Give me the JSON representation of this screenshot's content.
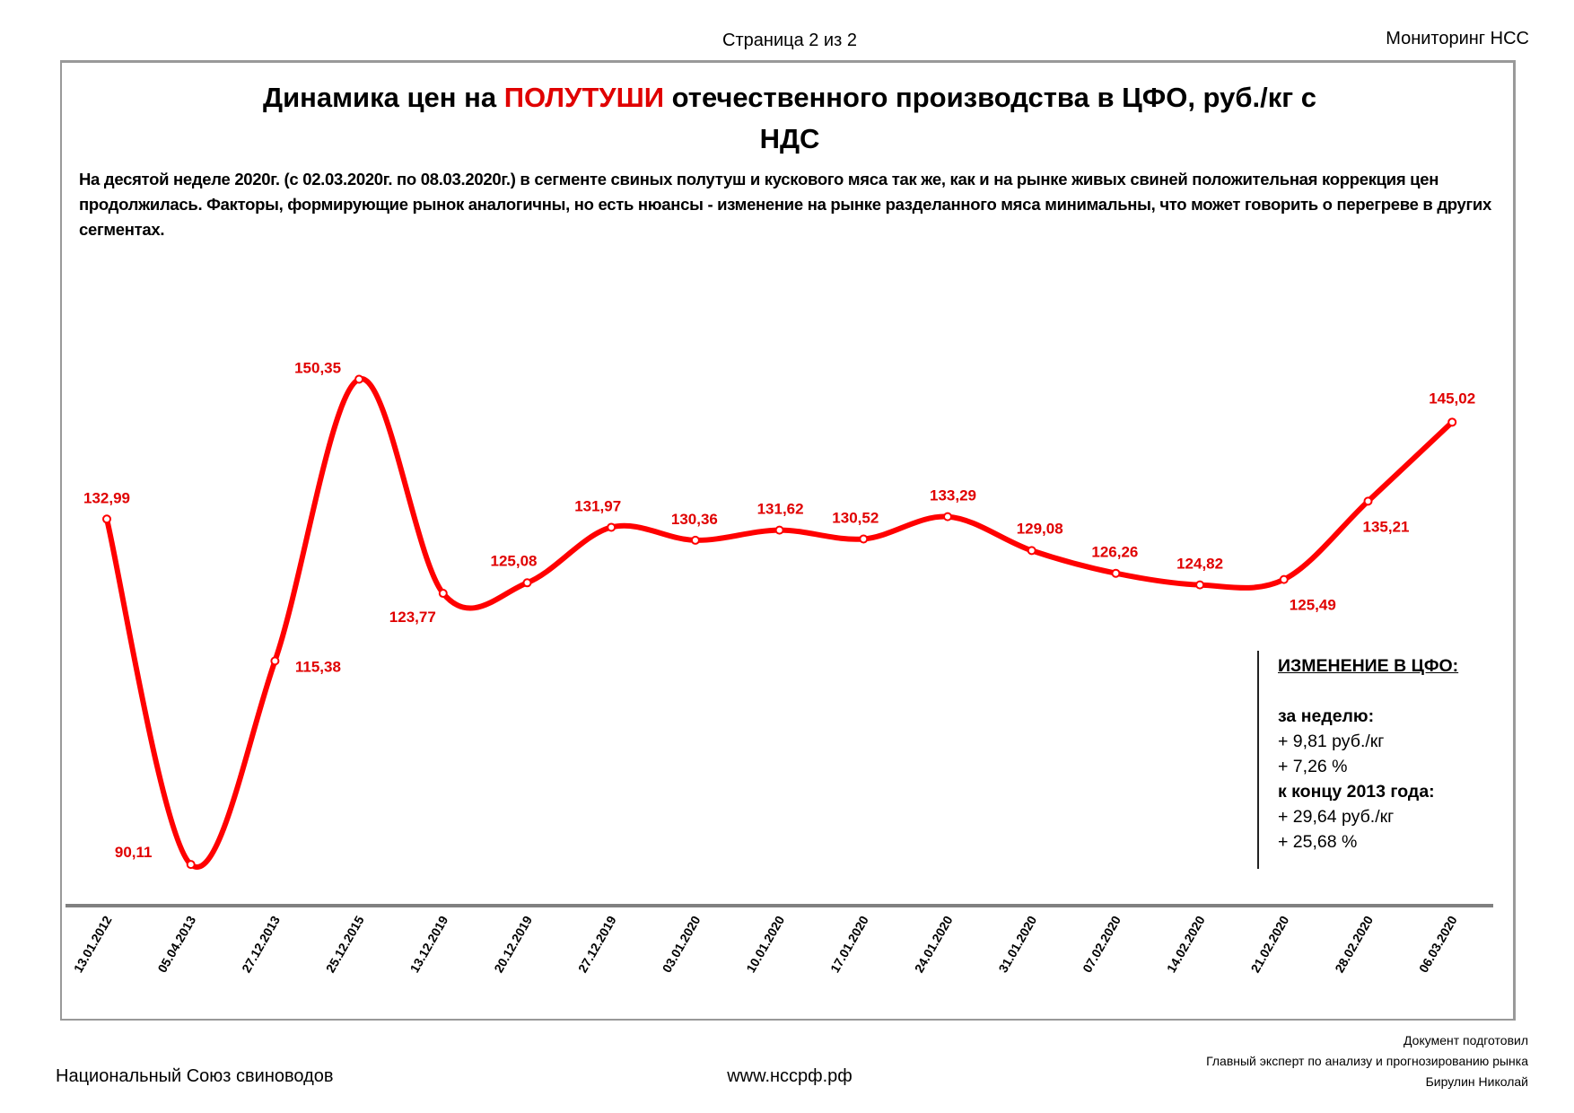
{
  "header": {
    "page": "Страница 2 из 2",
    "right": "Мониторинг НСС"
  },
  "title": {
    "part1": "Динамика цен на ",
    "highlight": "ПОЛУТУШИ",
    "part2": " отечественного производства в ЦФО, руб./кг с",
    "line2": "НДС"
  },
  "description": "На десятой неделе 2020г. (с 02.03.2020г. по 08.03.2020г.) в сегменте свиных полутуш и кускового мяса так же, как и на рынке живых свиней положительная коррекция цен продолжилась.  Факторы, формирующие рынок аналогичны, но есть нюансы - изменение на рынке разделанного мяса минимальны, что может говорить о перегреве в других сегментах.",
  "change_box": {
    "heading": "ИЗМЕНЕНИЕ В ЦФО:",
    "week_label": "за неделю:",
    "week_rub": "+ 9,81 руб./кг",
    "week_pct": "+ 7,26 %",
    "since_label": "к концу 2013 года:",
    "since_rub": "+ 29,64 руб./кг",
    "since_pct": "+ 25,68 %"
  },
  "footer": {
    "left": "Национальный Союз свиноводов",
    "mid": "www.нсcрф.рф",
    "right1": "Документ подготовил",
    "right2": "Главный эксперт по анализу и прогнозированию рынка",
    "right3": "Бирулин Николай"
  },
  "colors": {
    "line": "#ff0000",
    "label": "#e00000",
    "axis": "#808080"
  },
  "chart_data": {
    "type": "line",
    "title": "Динамика цен на ПОЛУТУШИ отечественного производства в ЦФО, руб./кг с НДС",
    "xlabel": "",
    "ylabel": "руб./кг",
    "categories": [
      "13.01.2012",
      "05.04.2013",
      "27.12.2013",
      "25.12.2015",
      "13.12.2019",
      "20.12.2019",
      "27.12.2019",
      "03.01.2020",
      "10.01.2020",
      "17.01.2020",
      "24.01.2020",
      "31.01.2020",
      "07.02.2020",
      "14.02.2020",
      "21.02.2020",
      "28.02.2020",
      "06.03.2020"
    ],
    "values": [
      132.99,
      90.11,
      115.38,
      150.35,
      123.77,
      125.08,
      131.97,
      130.36,
      131.62,
      130.52,
      133.29,
      129.08,
      126.26,
      124.82,
      125.49,
      135.21,
      145.02
    ],
    "value_labels": [
      "132,99",
      "90,11",
      "115,38",
      "150,35",
      "123,77",
      "125,08",
      "131,97",
      "130,36",
      "131,62",
      "130,52",
      "133,29",
      "129,08",
      "126,26",
      "124,82",
      "125,49",
      "135,21",
      "145,02"
    ],
    "ylim": [
      85,
      164
    ],
    "grid": false,
    "smooth": true
  }
}
